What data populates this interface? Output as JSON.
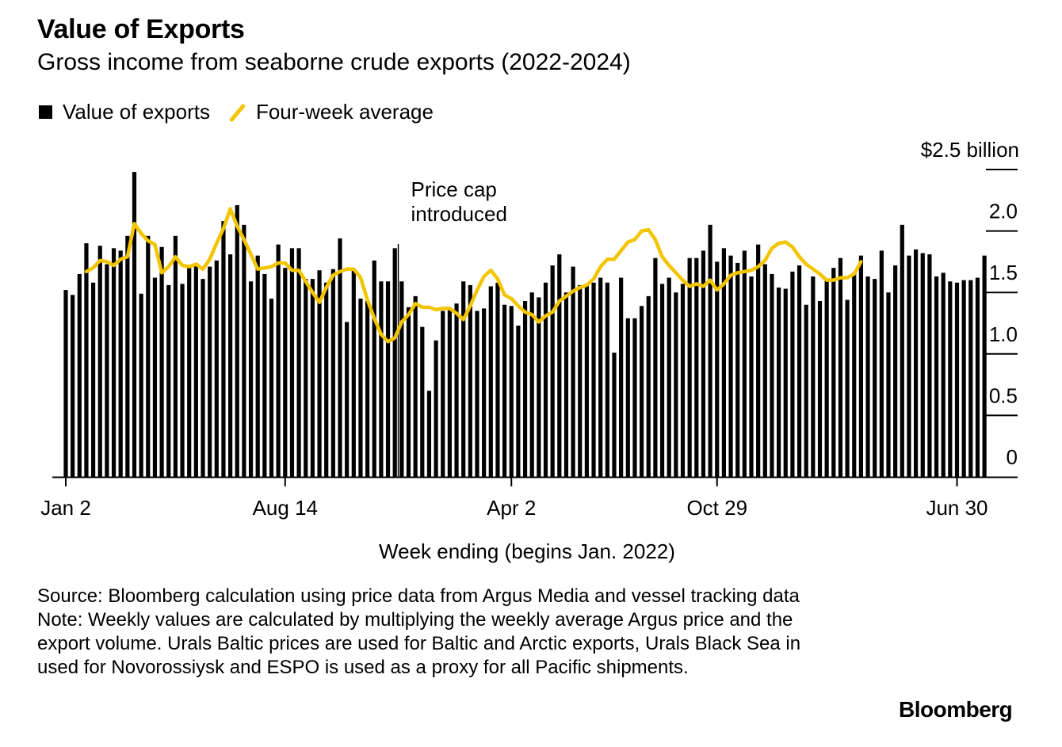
{
  "colors": {
    "bar": "#000000",
    "line": "#f2c500",
    "axis": "#000000"
  },
  "chart_data": {
    "type": "bar",
    "title": "Value of Exports",
    "subtitle": "Gross income from seaborne crude exports (2022-2024)",
    "legend": [
      {
        "label": "Value of exports",
        "kind": "bar"
      },
      {
        "label": "Four-week average",
        "kind": "line"
      }
    ],
    "y_unit_label": "$2.5 billion",
    "yticks": [
      "2.0",
      "1.5",
      "1.0",
      "0.5",
      "0"
    ],
    "ylim": [
      0,
      2.5
    ],
    "xlabel": "Week ending (begins Jan. 2022)",
    "xticks": [
      {
        "label": "Jan 2",
        "index": 0
      },
      {
        "label": "Aug 14",
        "index": 32
      },
      {
        "label": "Apr 2",
        "index": 65
      },
      {
        "label": "Oct 29",
        "index": 95
      },
      {
        "label": "Jun 30",
        "index": 130
      }
    ],
    "annotation": {
      "lines": [
        "Price cap",
        "introduced"
      ],
      "index": 48.5
    },
    "values": [
      1.52,
      1.48,
      1.65,
      1.9,
      1.58,
      1.88,
      1.73,
      1.86,
      1.84,
      1.96,
      2.48,
      1.49,
      1.96,
      1.62,
      1.87,
      1.56,
      1.96,
      1.57,
      1.7,
      1.74,
      1.61,
      1.71,
      1.76,
      2.08,
      1.81,
      2.21,
      2.05,
      1.59,
      1.8,
      1.65,
      1.45,
      1.89,
      1.7,
      1.86,
      1.86,
      1.61,
      1.61,
      1.68,
      1.58,
      1.69,
      1.94,
      1.26,
      1.69,
      1.45,
      1.43,
      1.76,
      1.59,
      1.59,
      1.86,
      1.59,
      1.38,
      1.47,
      1.22,
      0.7,
      1.11,
      1.35,
      1.36,
      1.41,
      1.59,
      1.56,
      1.35,
      1.37,
      1.55,
      1.58,
      1.4,
      1.39,
      1.23,
      1.43,
      1.5,
      1.46,
      1.58,
      1.72,
      1.81,
      1.5,
      1.71,
      1.56,
      1.57,
      1.58,
      1.62,
      1.58,
      1.01,
      1.62,
      1.29,
      1.29,
      1.39,
      1.47,
      1.78,
      1.57,
      1.62,
      1.5,
      1.57,
      1.78,
      1.78,
      1.84,
      2.05,
      1.75,
      1.86,
      1.8,
      1.74,
      1.84,
      1.63,
      1.89,
      1.73,
      1.65,
      1.54,
      1.53,
      1.67,
      1.72,
      1.4,
      1.63,
      1.43,
      1.61,
      1.7,
      1.78,
      1.44,
      1.66,
      1.8,
      1.63,
      1.61,
      1.84,
      1.5,
      1.72,
      2.05,
      1.8,
      1.85,
      1.82,
      1.81,
      1.63,
      1.66,
      1.59,
      1.58,
      1.6,
      1.6,
      1.62,
      1.8
    ],
    "average_series": {
      "start_index": 3,
      "values": [
        1.67,
        1.7,
        1.76,
        1.75,
        1.72,
        1.77,
        1.79,
        2.06,
        1.98,
        1.92,
        1.89,
        1.66,
        1.71,
        1.79,
        1.72,
        1.71,
        1.73,
        1.69,
        1.77,
        1.9,
        2.02,
        2.18,
        2.04,
        1.93,
        1.81,
        1.69,
        1.7,
        1.71,
        1.74,
        1.74,
        1.68,
        1.68,
        1.59,
        1.5,
        1.42,
        1.54,
        1.64,
        1.67,
        1.69,
        1.69,
        1.62,
        1.44,
        1.29,
        1.16,
        1.1,
        1.13,
        1.26,
        1.32,
        1.41,
        1.38,
        1.38,
        1.36,
        1.37,
        1.37,
        1.33,
        1.28,
        1.39,
        1.52,
        1.63,
        1.68,
        1.61,
        1.48,
        1.45,
        1.39,
        1.34,
        1.32,
        1.26,
        1.31,
        1.34,
        1.43,
        1.47,
        1.51,
        1.54,
        1.56,
        1.61,
        1.71,
        1.77,
        1.77,
        1.84,
        1.91,
        1.93,
        2.0,
        2.01,
        1.93,
        1.79,
        1.72,
        1.66,
        1.6,
        1.55,
        1.57,
        1.55,
        1.6,
        1.52,
        1.57,
        1.64,
        1.66,
        1.67,
        1.68,
        1.71,
        1.76,
        1.86,
        1.9,
        1.91,
        1.87,
        1.79,
        1.73,
        1.69,
        1.65,
        1.6,
        1.6,
        1.62,
        1.62,
        1.65,
        1.75
      ],
      "note": "four-week average, from Jan 23 2022"
    }
  },
  "source_text": "Source: Bloomberg calculation using price data from Argus Media and vessel tracking data",
  "note_text": "Note: Weekly values are calculated by multiplying the weekly average Argus price and the export volume. Urals Baltic prices are used for Baltic and Arctic exports, Urals Black Sea in used for Novorossiysk and ESPO is used as a proxy for all Pacific shipments.",
  "logo": "Bloomberg"
}
